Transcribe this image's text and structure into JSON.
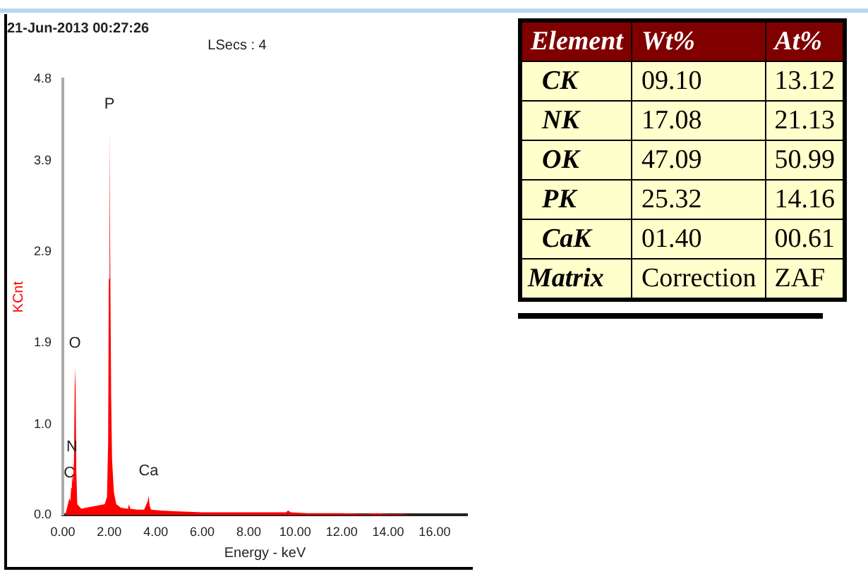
{
  "chart_data": [
    {
      "type": "area",
      "title": "21-Jun-2013 00:27:26",
      "subtitle": "LSecs : 4",
      "xlabel": "Energy - keV",
      "ylabel": "KCnt",
      "grid": false,
      "legend": false,
      "marker": "none",
      "xlim": [
        0,
        17.4
      ],
      "xticks": [
        {
          "value": 0,
          "label": "0.00"
        },
        {
          "value": 2,
          "label": "2.00"
        },
        {
          "value": 4,
          "label": "4.00"
        },
        {
          "value": 6,
          "label": "6.00"
        },
        {
          "value": 8,
          "label": "8.00"
        },
        {
          "value": 10,
          "label": "10.00"
        },
        {
          "value": 12,
          "label": "12.00"
        },
        {
          "value": 14,
          "label": "14.00"
        },
        {
          "value": 16,
          "label": "16.00"
        }
      ],
      "ylim": [
        0,
        4.8
      ],
      "yticks": [
        {
          "value": 0,
          "label": "0.0"
        },
        {
          "value": 1,
          "label": "1.0"
        },
        1.9,
        2.9,
        3.9,
        4.8
      ],
      "series": [
        {
          "color": "#ff0000",
          "x": [
            0.1,
            0.2,
            0.25,
            0.28,
            0.32,
            0.36,
            0.39,
            0.43,
            0.48,
            0.52,
            0.55,
            0.58,
            0.62,
            0.8,
            1.0,
            1.2,
            1.4,
            1.6,
            1.8,
            1.9,
            1.95,
            1.98,
            2.01,
            2.04,
            2.08,
            2.12,
            2.2,
            2.3,
            2.5,
            2.8,
            2.85,
            2.9,
            3.2,
            3.5,
            3.65,
            3.69,
            3.74,
            3.8,
            4.2,
            5,
            6,
            7,
            8,
            9,
            9.6,
            9.7,
            9.8,
            10.5,
            11.5,
            12,
            13,
            13.5,
            14,
            14.6,
            15
          ],
          "values": [
            0,
            0.1,
            0.15,
            0.19,
            0.15,
            0.3,
            0.48,
            0.35,
            0.6,
            1.62,
            1.4,
            0.5,
            0.12,
            0.07,
            0.08,
            0.09,
            0.1,
            0.11,
            0.12,
            0.2,
            0.8,
            2.6,
            4.25,
            2.8,
            1.3,
            0.6,
            0.25,
            0.12,
            0.08,
            0.07,
            0.12,
            0.07,
            0.06,
            0.06,
            0.15,
            0.21,
            0.1,
            0.06,
            0.05,
            0.04,
            0.03,
            0.03,
            0.03,
            0.03,
            0.03,
            0.05,
            0.03,
            0.02,
            0.02,
            0.02,
            0.01,
            0.02,
            0.01,
            0.01,
            0
          ]
        }
      ],
      "annotations": [
        {
          "text": "P",
          "x": 2.01,
          "y": 4.25
        },
        {
          "text": "O",
          "x": 0.52,
          "y": 1.62
        },
        {
          "text": "N",
          "x": 0.39,
          "y": 0.48
        },
        {
          "text": "C",
          "x": 0.28,
          "y": 0.19
        },
        {
          "text": "Ca",
          "x": 3.69,
          "y": 0.21
        }
      ]
    },
    {
      "type": "other",
      "categories": [
        "Element",
        "Wt%",
        "At%"
      ],
      "y_categories": [
        "CK",
        "NK",
        "OK",
        "PK",
        "CaK",
        "Matrix"
      ],
      "cell_labels": [
        [
          "09.10",
          "13.12"
        ],
        [
          "17.08",
          "21.13"
        ],
        [
          "47.09",
          "50.99"
        ],
        [
          "25.32",
          "14.16"
        ],
        [
          "01.40",
          "00.61"
        ],
        [
          "Correction",
          "ZAF"
        ]
      ]
    }
  ]
}
